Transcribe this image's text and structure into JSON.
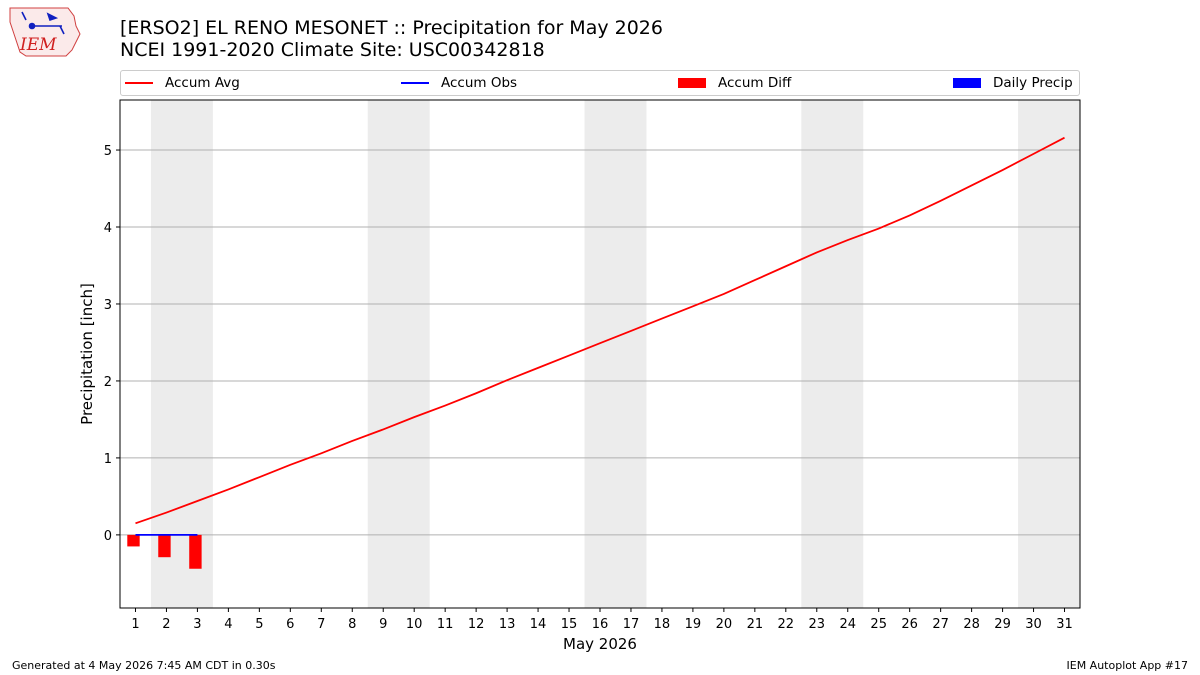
{
  "header": {
    "title_line1": "[ERSO2] EL RENO MESONET :: Precipitation for May 2026",
    "title_line2": "NCEI 1991-2020 Climate Site: USC00342818",
    "logo_text": "IEM"
  },
  "footer": {
    "generated": "Generated at 4 May 2026 7:45 AM CDT in 0.30s",
    "app": "IEM Autoplot App #17"
  },
  "colors": {
    "avg": "#ff0000",
    "obs": "#0000ff",
    "diff": "#ff0000",
    "daily": "#0000ff",
    "weekend_shade": "#ececec",
    "grid": "#b0b0b0"
  },
  "chart_data": {
    "type": "line",
    "xlabel": "May 2026",
    "ylabel": "Precipitation [inch]",
    "xlim": [
      0.5,
      31.5
    ],
    "ylim": [
      -0.95,
      5.65
    ],
    "yticks": [
      0,
      1,
      2,
      3,
      4,
      5
    ],
    "xticks": [
      1,
      2,
      3,
      4,
      5,
      6,
      7,
      8,
      9,
      10,
      11,
      12,
      13,
      14,
      15,
      16,
      17,
      18,
      19,
      20,
      21,
      22,
      23,
      24,
      25,
      26,
      27,
      28,
      29,
      30,
      31
    ],
    "grid": "horizontal",
    "legend": {
      "placement": "top",
      "entries": [
        "Accum Avg",
        "Accum Obs",
        "Accum Diff",
        "Daily Precip"
      ]
    },
    "shaded_days": [
      [
        2,
        3
      ],
      [
        9,
        10
      ],
      [
        16,
        17
      ],
      [
        23,
        24
      ],
      [
        30,
        31
      ]
    ],
    "series": [
      {
        "name": "Accum Avg",
        "kind": "line",
        "x": [
          1,
          2,
          3,
          4,
          5,
          6,
          7,
          8,
          9,
          10,
          11,
          12,
          13,
          14,
          15,
          16,
          17,
          18,
          19,
          20,
          21,
          22,
          23,
          24,
          25,
          26,
          27,
          28,
          29,
          30,
          31
        ],
        "values": [
          0.15,
          0.29,
          0.44,
          0.59,
          0.75,
          0.91,
          1.06,
          1.22,
          1.37,
          1.53,
          1.68,
          1.84,
          2.01,
          2.17,
          2.33,
          2.49,
          2.65,
          2.81,
          2.97,
          3.13,
          3.31,
          3.49,
          3.67,
          3.83,
          3.98,
          4.15,
          4.34,
          4.54,
          4.74,
          4.95,
          5.16
        ]
      },
      {
        "name": "Accum Obs",
        "kind": "line",
        "x": [
          1,
          2,
          3
        ],
        "values": [
          0.0,
          0.0,
          0.0
        ]
      },
      {
        "name": "Accum Diff",
        "kind": "bar",
        "x": [
          1,
          2,
          3
        ],
        "values": [
          -0.15,
          -0.29,
          -0.44
        ]
      },
      {
        "name": "Daily Precip",
        "kind": "bar",
        "x": [
          1,
          2,
          3
        ],
        "values": [
          0.0,
          0.0,
          0.0
        ]
      }
    ]
  }
}
